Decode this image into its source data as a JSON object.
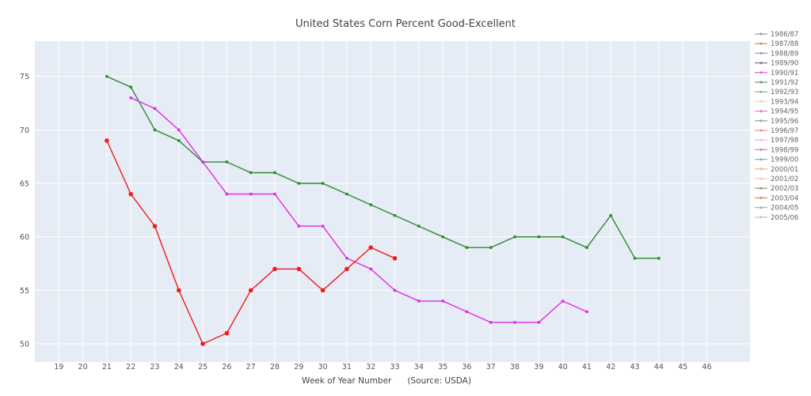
{
  "chart_data": {
    "type": "line",
    "title": "United States Corn Percent Good-Excellent",
    "xlabel": "Week of Year Number      (Source: USDA)",
    "ylabel": "",
    "xlim": [
      18,
      47.8
    ],
    "ylim": [
      48.3,
      78.3
    ],
    "x_ticks": [
      19,
      20,
      21,
      22,
      23,
      24,
      25,
      26,
      27,
      28,
      29,
      30,
      31,
      32,
      33,
      34,
      35,
      36,
      37,
      38,
      39,
      40,
      41,
      42,
      43,
      44,
      45,
      46
    ],
    "y_ticks": [
      50,
      55,
      60,
      65,
      70,
      75
    ],
    "grid": true,
    "legend_position": "right",
    "legend": [
      {
        "name": "1986/87",
        "color": "#9aa0ad"
      },
      {
        "name": "1987/88",
        "color": "#e8866b"
      },
      {
        "name": "1988/89",
        "color": "#b98de0"
      },
      {
        "name": "1989/90",
        "color": "#7b8491"
      },
      {
        "name": "1990/91",
        "color": "#e062e6"
      },
      {
        "name": "1991/92",
        "color": "#6fa26f"
      },
      {
        "name": "1992/93",
        "color": "#7fc68a"
      },
      {
        "name": "1993/94",
        "color": "#f6d4a6"
      },
      {
        "name": "1994/95",
        "color": "#ea7eea"
      },
      {
        "name": "1995/96",
        "color": "#8fae8f"
      },
      {
        "name": "1996/97",
        "color": "#ee9a86"
      },
      {
        "name": "1997/98",
        "color": "#d9c3ea"
      },
      {
        "name": "1998/99",
        "color": "#c88ad6"
      },
      {
        "name": "1999/00",
        "color": "#8fb4a8"
      },
      {
        "name": "2000/01",
        "color": "#f2b48c"
      },
      {
        "name": "2001/02",
        "color": "#f4c6b8"
      },
      {
        "name": "2002/03",
        "color": "#8ea58e"
      },
      {
        "name": "2003/04",
        "color": "#e98a74"
      },
      {
        "name": "2004/05",
        "color": "#a9b0d8"
      },
      {
        "name": "2005/06",
        "color": "#bfc3cf"
      }
    ],
    "series": [
      {
        "color": "#2e8b2e",
        "x": [
          21,
          22,
          23,
          24,
          25,
          26,
          27,
          28,
          29,
          30,
          31,
          32,
          33,
          34,
          35,
          36,
          37,
          38,
          39,
          40,
          41,
          42,
          43,
          44
        ],
        "y": [
          75,
          74,
          70,
          69,
          67,
          67,
          66,
          66,
          65,
          65,
          64,
          63,
          62,
          61,
          60,
          59,
          59,
          60,
          60,
          60,
          59,
          62,
          58,
          58
        ]
      },
      {
        "color": "#e12de1",
        "x": [
          22,
          23,
          24,
          25,
          26,
          27,
          28,
          29,
          30,
          31,
          32,
          33,
          34,
          35,
          36,
          37,
          38,
          39,
          40,
          41
        ],
        "y": [
          73,
          72,
          70,
          67,
          64,
          64,
          64,
          61,
          61,
          58,
          57,
          55,
          54,
          54,
          53,
          52,
          52,
          52,
          54,
          53
        ]
      },
      {
        "color": "#ee1c1c",
        "x": [
          21,
          22,
          23,
          24,
          25,
          26,
          27,
          28,
          29,
          30,
          31,
          32,
          33
        ],
        "y": [
          69,
          64,
          61,
          55,
          50,
          51,
          55,
          57,
          57,
          55,
          57,
          59,
          58
        ]
      }
    ]
  }
}
